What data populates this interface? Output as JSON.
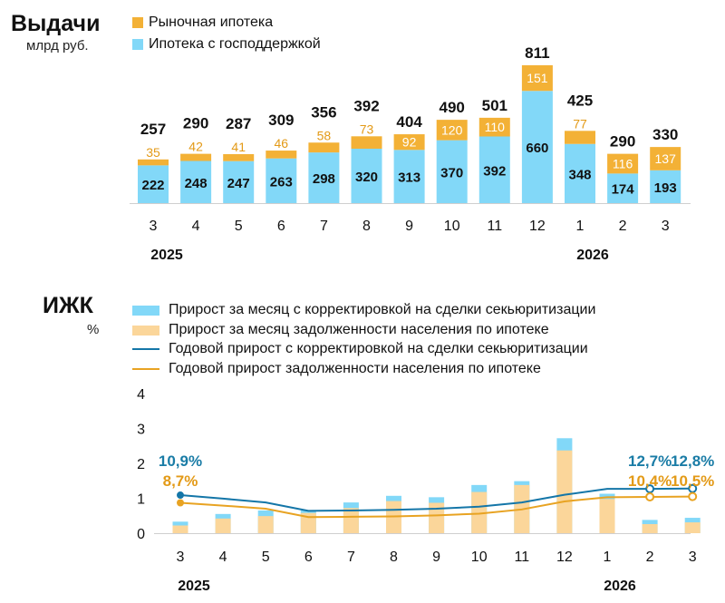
{
  "colors": {
    "blue_bar": "#82d8f8",
    "orange_bar": "#f3b136",
    "light_orange_bar": "#fbd69a",
    "blue_line": "#1476a8",
    "orange_line": "#e8a322",
    "teal_label": "#1a7ca6",
    "orange_label": "#e39a17"
  },
  "top": {
    "title": "Выдачи",
    "unit": "млрд руб.",
    "legend": [
      "Рыночная ипотека",
      "Ипотека с господдержкой"
    ]
  },
  "bottom": {
    "title": "ИЖК",
    "unit": "%",
    "legend": [
      "Прирост за месяц с корректировкой на сделки секьюритизации",
      "Прирост за месяц задолженности населения по ипотеке",
      "Годовой прирост с корректировкой на сделки секьюритизации",
      "Годовой прирост задолженности населения по ипотеке"
    ]
  },
  "chart_data": [
    {
      "type": "bar",
      "title": "Выдачи",
      "ylabel": "млрд руб.",
      "categories": [
        "3",
        "4",
        "5",
        "6",
        "7",
        "8",
        "9",
        "10",
        "11",
        "12",
        "1",
        "2",
        "3"
      ],
      "year_labels": [
        "2025",
        "2026"
      ],
      "series": [
        {
          "name": "Ипотека с господдержкой",
          "values": [
            222,
            248,
            247,
            263,
            298,
            320,
            313,
            370,
            392,
            660,
            348,
            174,
            193
          ]
        },
        {
          "name": "Рыночная ипотека",
          "values": [
            35,
            42,
            41,
            46,
            58,
            73,
            92,
            120,
            110,
            151,
            77,
            116,
            137
          ]
        }
      ],
      "totals": [
        257,
        290,
        287,
        309,
        356,
        392,
        404,
        490,
        501,
        811,
        425,
        290,
        330
      ]
    },
    {
      "type": "bar",
      "title": "ИЖК",
      "ylabel": "%",
      "categories": [
        "3",
        "4",
        "5",
        "6",
        "7",
        "8",
        "9",
        "10",
        "11",
        "12",
        "1",
        "2",
        "3"
      ],
      "year_labels": [
        "2025",
        "2026"
      ],
      "ylim": [
        0,
        4
      ],
      "yticks": [
        "0",
        "1",
        "2",
        "3",
        "4"
      ],
      "series": [
        {
          "name": "Прирост за месяц с корректировкой на сделки секьюритизации",
          "type": "bar",
          "values": [
            0.33,
            0.55,
            0.65,
            0.65,
            0.88,
            1.07,
            1.03,
            1.38,
            1.49,
            2.72,
            1.13,
            0.38,
            0.44
          ]
        },
        {
          "name": "Прирост за месяц задолженности населения по ипотеке",
          "type": "bar",
          "values": [
            0.22,
            0.42,
            0.49,
            0.58,
            0.72,
            0.92,
            0.87,
            1.18,
            1.38,
            2.37,
            0.98,
            0.26,
            0.31
          ]
        },
        {
          "name": "Годовой прирост с корректировкой на сделки секьюритизации",
          "type": "line",
          "values": [
            1.09,
            0.99,
            0.88,
            0.64,
            0.65,
            0.67,
            0.7,
            0.76,
            0.88,
            1.1,
            1.27,
            1.27,
            1.28
          ]
        },
        {
          "name": "Годовой прирост задолженности населения по ипотеке",
          "type": "line",
          "values": [
            0.87,
            0.79,
            0.7,
            0.46,
            0.47,
            0.48,
            0.51,
            0.56,
            0.68,
            0.91,
            1.03,
            1.04,
            1.05
          ]
        }
      ],
      "annotations": {
        "teal": [
          "10,9%",
          "12,7%",
          "12,8%"
        ],
        "orange": [
          "8,7%",
          "10,4%",
          "10,5%"
        ]
      }
    }
  ]
}
